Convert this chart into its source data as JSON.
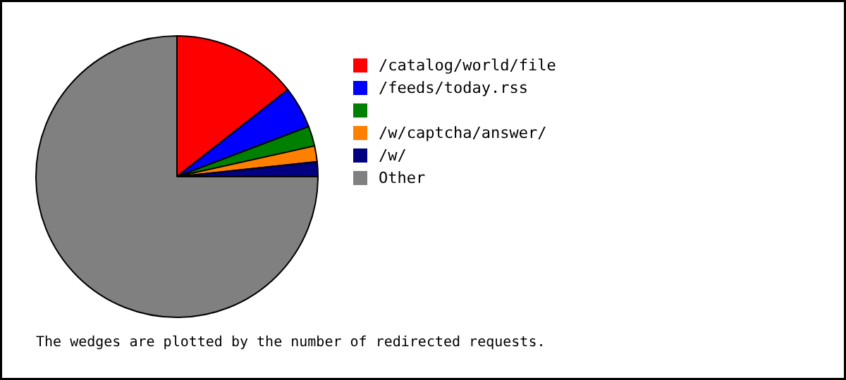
{
  "chart_data": {
    "type": "pie",
    "categories": [
      "/catalog/world/file",
      "/feeds/today.rss",
      null,
      "/w/captcha/answer/",
      "/w/",
      "Other"
    ],
    "values": [
      14.4,
      4.8,
      2.3,
      1.8,
      1.7,
      75.0
    ],
    "colors": [
      "#ff0000",
      "#0000ff",
      "#008000",
      "#ff8000",
      "#000080",
      "#808080"
    ],
    "legend": "right",
    "annotations": [
      "The wedges are plotted by the number of redirected requests."
    ]
  }
}
